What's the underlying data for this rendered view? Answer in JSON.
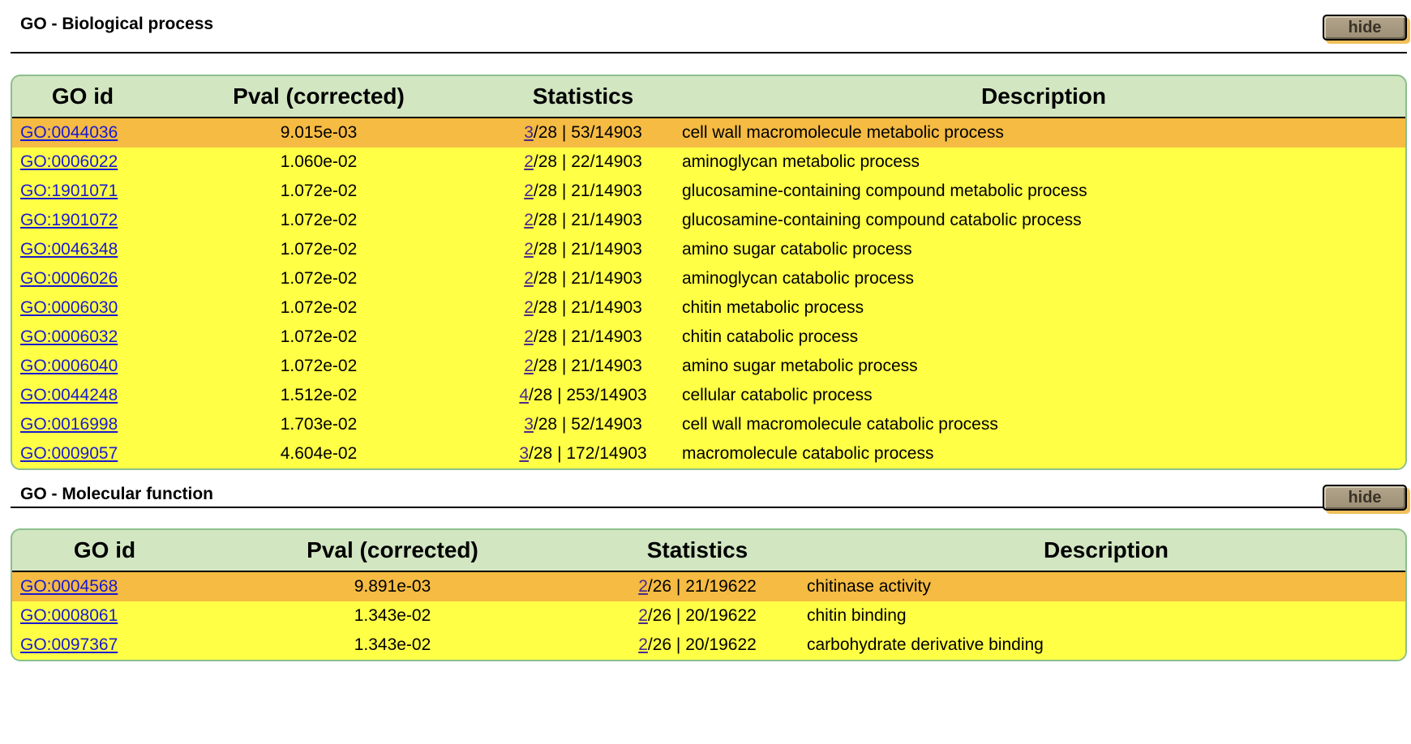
{
  "sections": [
    {
      "title": "GO - Biological process",
      "hide_label": "hide",
      "columns": [
        "GO id",
        "Pval (corrected)",
        "Statistics",
        "Description"
      ],
      "rows": [
        {
          "go_id": "GO:0044036",
          "pval": "9.015e-03",
          "stat_link": "3",
          "stat_rest": "/28 | 53/14903",
          "desc": "cell wall macromolecule metabolic process"
        },
        {
          "go_id": "GO:0006022",
          "pval": "1.060e-02",
          "stat_link": "2",
          "stat_rest": "/28 | 22/14903",
          "desc": "aminoglycan metabolic process"
        },
        {
          "go_id": "GO:1901071",
          "pval": "1.072e-02",
          "stat_link": "2",
          "stat_rest": "/28 | 21/14903",
          "desc": "glucosamine-containing compound metabolic process"
        },
        {
          "go_id": "GO:1901072",
          "pval": "1.072e-02",
          "stat_link": "2",
          "stat_rest": "/28 | 21/14903",
          "desc": "glucosamine-containing compound catabolic process"
        },
        {
          "go_id": "GO:0046348",
          "pval": "1.072e-02",
          "stat_link": "2",
          "stat_rest": "/28 | 21/14903",
          "desc": "amino sugar catabolic process"
        },
        {
          "go_id": "GO:0006026",
          "pval": "1.072e-02",
          "stat_link": "2",
          "stat_rest": "/28 | 21/14903",
          "desc": "aminoglycan catabolic process"
        },
        {
          "go_id": "GO:0006030",
          "pval": "1.072e-02",
          "stat_link": "2",
          "stat_rest": "/28 | 21/14903",
          "desc": "chitin metabolic process"
        },
        {
          "go_id": "GO:0006032",
          "pval": "1.072e-02",
          "stat_link": "2",
          "stat_rest": "/28 | 21/14903",
          "desc": "chitin catabolic process"
        },
        {
          "go_id": "GO:0006040",
          "pval": "1.072e-02",
          "stat_link": "2",
          "stat_rest": "/28 | 21/14903",
          "desc": "amino sugar metabolic process"
        },
        {
          "go_id": "GO:0044248",
          "pval": "1.512e-02",
          "stat_link": "4",
          "stat_rest": "/28 | 253/14903",
          "desc": "cellular catabolic process"
        },
        {
          "go_id": "GO:0016998",
          "pval": "1.703e-02",
          "stat_link": "3",
          "stat_rest": "/28 | 52/14903",
          "desc": "cell wall macromolecule catabolic process"
        },
        {
          "go_id": "GO:0009057",
          "pval": "4.604e-02",
          "stat_link": "3",
          "stat_rest": "/28 | 172/14903",
          "desc": "macromolecule catabolic process"
        }
      ]
    },
    {
      "title": "GO - Molecular function",
      "hide_label": "hide",
      "columns": [
        "GO id",
        "Pval (corrected)",
        "Statistics",
        "Description"
      ],
      "rows": [
        {
          "go_id": "GO:0004568",
          "pval": "9.891e-03",
          "stat_link": "2",
          "stat_rest": "/26 | 21/19622",
          "desc": "chitinase activity"
        },
        {
          "go_id": "GO:0008061",
          "pval": "1.343e-02",
          "stat_link": "2",
          "stat_rest": "/26 | 20/19622",
          "desc": "chitin binding"
        },
        {
          "go_id": "GO:0097367",
          "pval": "1.343e-02",
          "stat_link": "2",
          "stat_rest": "/26 | 20/19622",
          "desc": "carbohydrate derivative binding"
        }
      ]
    }
  ],
  "colors": {
    "panel_bg": "#d2e6c2",
    "row_bg": "#ffff46",
    "row_highlight_bg": "#f5bb42",
    "link": "#1a1ad0",
    "button_bg": "#a89b82"
  }
}
